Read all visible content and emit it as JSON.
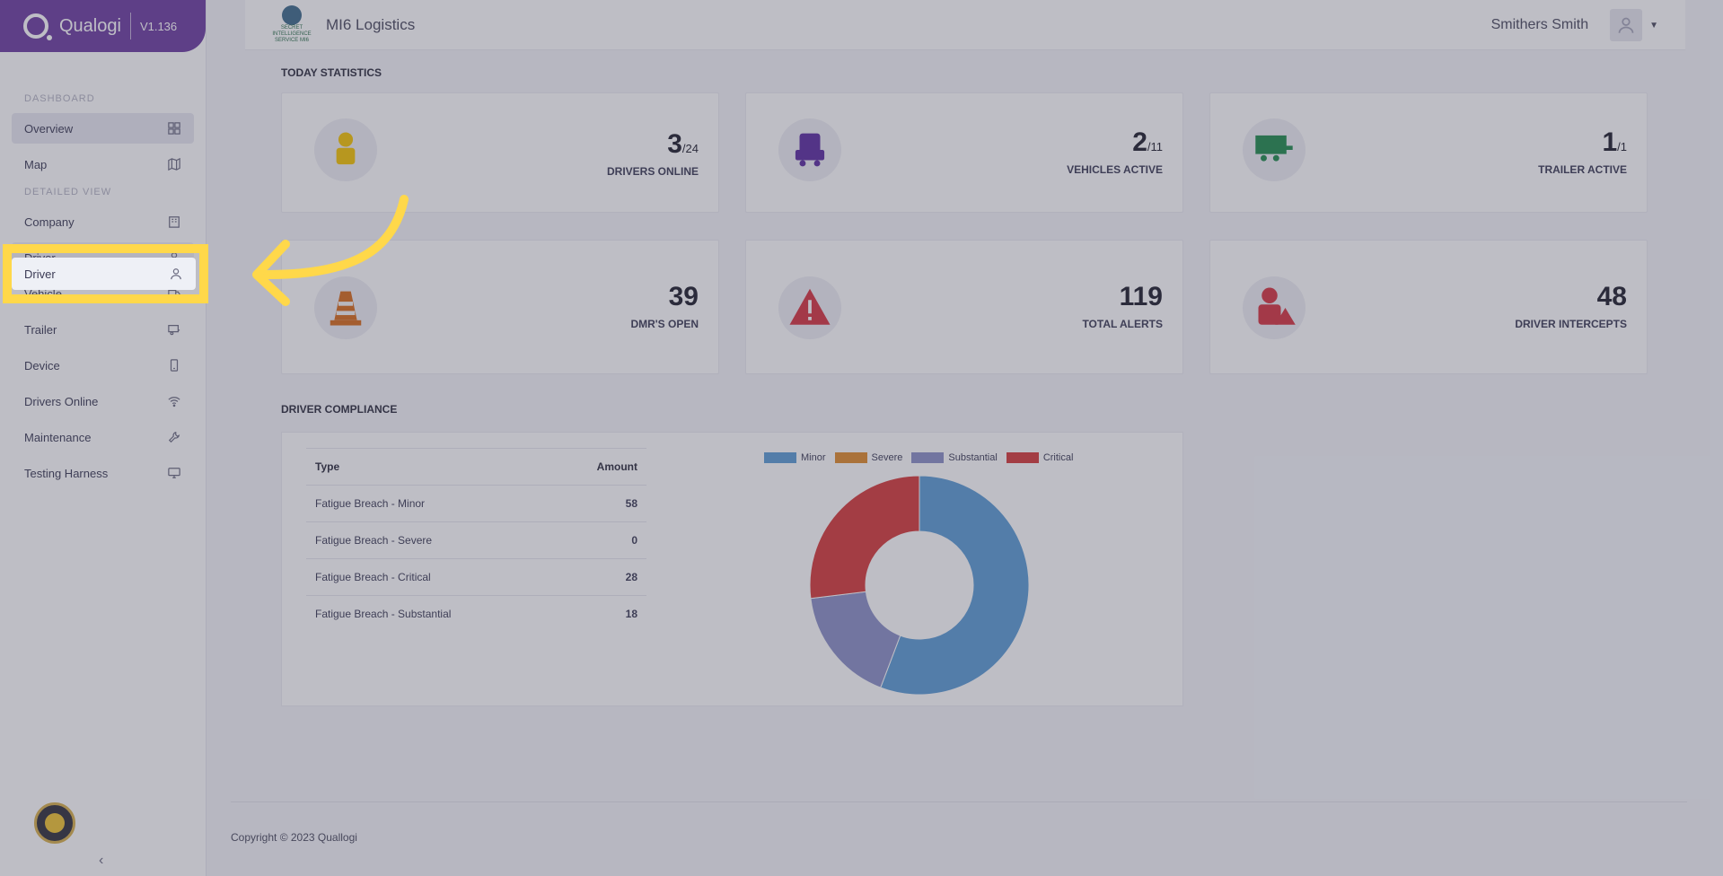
{
  "brand": {
    "name": "Qualogi",
    "version": "V1.136"
  },
  "sidebar": {
    "sections": [
      {
        "title": "DASHBOARD"
      },
      {
        "title": "DETAILED VIEW"
      }
    ],
    "items": [
      {
        "label": "Overview",
        "icon": "grid-icon"
      },
      {
        "label": "Map",
        "icon": "map-icon"
      },
      {
        "label": "Company",
        "icon": "building-icon"
      },
      {
        "label": "Driver",
        "icon": "user-icon"
      },
      {
        "label": "Vehicle",
        "icon": "truck-icon"
      },
      {
        "label": "Trailer",
        "icon": "trailer-icon"
      },
      {
        "label": "Device",
        "icon": "device-icon"
      },
      {
        "label": "Drivers Online",
        "icon": "wifi-icon"
      },
      {
        "label": "Maintenance",
        "icon": "wrench-icon"
      },
      {
        "label": "Testing Harness",
        "icon": "monitor-icon"
      }
    ],
    "collapse_icon": "chevron-left-icon"
  },
  "topbar": {
    "org_logo_text": "SECRET INTELLIGENCE SERVICE MI6",
    "org_name": "MI6 Logistics",
    "user_name": "Smithers Smith"
  },
  "today_statistics": {
    "title": "TODAY STATISTICS",
    "cards": [
      {
        "value": "3",
        "total": "/24",
        "label": "DRIVERS ONLINE",
        "color": "#f4c400"
      },
      {
        "value": "2",
        "total": "/11",
        "label": "VEHICLES ACTIVE",
        "color": "#5b2ca0"
      },
      {
        "value": "1",
        "total": "/1",
        "label": "TRAILER ACTIVE",
        "color": "#1f8a4c"
      },
      {
        "value": "39",
        "total": "",
        "label": "DMR'S OPEN",
        "color": "#d86a1a"
      },
      {
        "value": "119",
        "total": "",
        "label": "TOTAL ALERTS",
        "color": "#d6333f"
      },
      {
        "value": "48",
        "total": "",
        "label": "DRIVER INTERCEPTS",
        "color": "#d6333f"
      }
    ]
  },
  "driver_compliance": {
    "title": "DRIVER COMPLIANCE",
    "table": {
      "headers": [
        "Type",
        "Amount"
      ],
      "rows": [
        [
          "Fatigue Breach - Minor",
          "58"
        ],
        [
          "Fatigue Breach - Severe",
          "0"
        ],
        [
          "Fatigue Breach - Critical",
          "28"
        ],
        [
          "Fatigue Breach - Substantial",
          "18"
        ]
      ]
    },
    "legend": [
      {
        "label": "Minor",
        "color": "#5b9bd5"
      },
      {
        "label": "Severe",
        "color": "#e08a2a"
      },
      {
        "label": "Substantial",
        "color": "#8a8fc7"
      },
      {
        "label": "Critical",
        "color": "#d63a3a"
      }
    ]
  },
  "chart_data": {
    "type": "pie",
    "categories": [
      "Minor",
      "Severe",
      "Substantial",
      "Critical"
    ],
    "values": [
      58,
      0,
      18,
      28
    ],
    "colors": [
      "#5b9bd5",
      "#e08a2a",
      "#8a8fc7",
      "#d63a3a"
    ]
  },
  "footer": {
    "text": "Copyright © 2023 Quallogi"
  }
}
